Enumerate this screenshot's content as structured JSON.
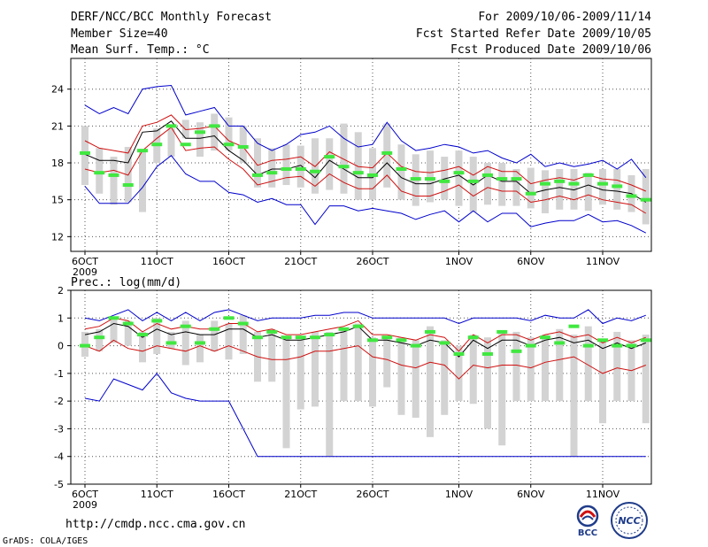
{
  "header": {
    "title": "DERF/NCC/BCC Monthly Forecast",
    "member_size": "Member Size=40",
    "variable": "Mean Surf. Temp.: °C",
    "forecast_period": "For 2009/10/06-2009/11/14",
    "started_refer": "Fcst Started Refer Date 2009/10/05",
    "produced": "Fcst Produced Date 2009/10/06"
  },
  "footer": {
    "url": "http://cmdp.ncc.cma.gov.cn",
    "credit": "GrADS: COLA/IGES",
    "logo_bcc": "BCC",
    "logo_ncc": "NCC"
  },
  "colors": {
    "box": "#d3d3d3",
    "median": "#40e840",
    "mean": "#000000",
    "spread": "#d01010",
    "extreme": "#0000cc",
    "grid": "#555555"
  },
  "chart_data": [
    {
      "type": "box",
      "title": "Mean Surf. Temp.: °C",
      "x": [
        "2009-10-06",
        "10-07",
        "10-08",
        "10-09",
        "10-10",
        "10-11",
        "10-12",
        "10-13",
        "10-14",
        "10-15",
        "10-16",
        "10-17",
        "10-18",
        "10-19",
        "10-20",
        "10-21",
        "10-22",
        "10-23",
        "10-24",
        "10-25",
        "10-26",
        "10-27",
        "10-28",
        "10-29",
        "10-30",
        "10-31",
        "11-01",
        "11-02",
        "11-03",
        "11-04",
        "11-05",
        "11-06",
        "11-07",
        "11-08",
        "11-09",
        "11-10",
        "11-11",
        "11-12",
        "11-13",
        "11-14"
      ],
      "xticks": [
        {
          "index": 0,
          "label": "6OCT",
          "sublabel": "2009"
        },
        {
          "index": 5,
          "label": "11OCT"
        },
        {
          "index": 10,
          "label": "16OCT"
        },
        {
          "index": 15,
          "label": "21OCT"
        },
        {
          "index": 20,
          "label": "26OCT"
        },
        {
          "index": 26,
          "label": "1NOV"
        },
        {
          "index": 31,
          "label": "6NOV"
        },
        {
          "index": 36,
          "label": "11NOV"
        }
      ],
      "yticks": [
        12,
        15,
        18,
        21,
        24
      ],
      "ylim": [
        10.8,
        26.5
      ],
      "series": {
        "box_low": [
          16.2,
          15.5,
          14.6,
          14.8,
          14.0,
          18.0,
          18.5,
          20.0,
          18.5,
          19.0,
          19.0,
          18.0,
          16.0,
          16.0,
          16.2,
          16.0,
          15.5,
          15.8,
          15.5,
          15.0,
          15.0,
          16.0,
          15.0,
          14.5,
          14.8,
          15.0,
          14.5,
          14.0,
          14.6,
          14.5,
          14.5,
          14.3,
          13.9,
          14.2,
          14.2,
          14.1,
          14.6,
          14.2,
          14.0,
          13.0
        ],
        "box_high": [
          21.0,
          19.2,
          18.5,
          19.3,
          19.0,
          20.8,
          20.8,
          21.5,
          21.3,
          22.0,
          21.7,
          21.0,
          20.0,
          19.2,
          19.5,
          19.4,
          20.0,
          20.0,
          21.2,
          20.5,
          19.2,
          21.2,
          19.5,
          18.7,
          19.0,
          18.5,
          19.0,
          18.5,
          18.0,
          18.0,
          17.5,
          17.6,
          17.4,
          17.5,
          17.5,
          17.2,
          17.5,
          17.5,
          17.0,
          17.5
        ],
        "median": [
          18.8,
          17.2,
          17.0,
          16.2,
          19.0,
          19.5,
          21.0,
          19.5,
          20.5,
          21.0,
          19.5,
          19.3,
          17.0,
          17.2,
          17.5,
          17.5,
          17.3,
          18.5,
          17.7,
          17.2,
          17.0,
          18.8,
          17.5,
          16.7,
          16.7,
          16.5,
          17.2,
          16.5,
          17.0,
          16.7,
          16.7,
          15.5,
          16.3,
          16.5,
          16.3,
          17.0,
          16.3,
          16.1,
          15.3,
          15.0
        ],
        "mean": [
          18.7,
          18.2,
          18.2,
          18.0,
          20.5,
          20.6,
          21.4,
          20.0,
          20.0,
          20.2,
          19.0,
          18.2,
          17.0,
          17.5,
          17.5,
          17.8,
          16.8,
          18.2,
          17.5,
          16.8,
          16.8,
          18.0,
          16.8,
          16.3,
          16.3,
          16.7,
          17.0,
          16.2,
          17.0,
          16.5,
          16.5,
          15.5,
          15.8,
          16.0,
          15.8,
          16.2,
          15.8,
          15.7,
          15.5,
          14.8
        ],
        "ens_high": [
          19.8,
          19.2,
          19.0,
          18.8,
          21.0,
          21.3,
          21.9,
          20.7,
          20.8,
          21.0,
          19.8,
          19.3,
          17.8,
          18.2,
          18.3,
          18.5,
          17.7,
          18.9,
          18.3,
          17.7,
          17.6,
          18.8,
          17.7,
          17.3,
          17.2,
          17.4,
          17.7,
          17.0,
          17.7,
          17.3,
          17.3,
          16.3,
          16.6,
          16.8,
          16.6,
          17.0,
          16.7,
          16.6,
          16.2,
          15.7
        ],
        "ens_low": [
          17.5,
          17.2,
          17.4,
          17.0,
          19.0,
          20.0,
          20.9,
          19.0,
          19.2,
          19.3,
          18.3,
          17.5,
          16.2,
          16.5,
          16.8,
          16.9,
          16.1,
          17.1,
          16.4,
          15.9,
          15.9,
          17.0,
          15.7,
          15.3,
          15.3,
          15.7,
          16.2,
          15.3,
          16.0,
          15.7,
          15.7,
          14.8,
          15.0,
          15.3,
          15.0,
          15.4,
          15.0,
          14.8,
          14.6,
          13.9
        ],
        "max": [
          22.7,
          22.0,
          22.5,
          22.0,
          24.0,
          24.2,
          24.3,
          21.9,
          22.2,
          22.5,
          21.0,
          21.0,
          19.6,
          19.0,
          19.5,
          20.3,
          20.5,
          21.0,
          20.0,
          19.3,
          19.5,
          21.3,
          19.8,
          19.0,
          19.2,
          19.5,
          19.3,
          18.8,
          19.0,
          18.4,
          18.0,
          18.7,
          17.7,
          18.0,
          17.7,
          17.9,
          18.2,
          17.5,
          18.3,
          16.8
        ],
        "min": [
          16.1,
          14.7,
          14.7,
          14.7,
          16.0,
          17.7,
          18.6,
          17.1,
          16.5,
          16.5,
          15.6,
          15.4,
          14.8,
          15.1,
          14.6,
          14.6,
          13.0,
          14.5,
          14.5,
          14.1,
          14.3,
          14.1,
          13.9,
          13.4,
          13.8,
          14.1,
          13.2,
          14.1,
          13.2,
          13.9,
          13.9,
          12.8,
          13.1,
          13.3,
          13.3,
          13.8,
          13.2,
          13.3,
          12.9,
          12.3
        ]
      }
    },
    {
      "type": "box",
      "title": "Prec.: log(mm/d)",
      "x": [
        "2009-10-06",
        "10-07",
        "10-08",
        "10-09",
        "10-10",
        "10-11",
        "10-12",
        "10-13",
        "10-14",
        "10-15",
        "10-16",
        "10-17",
        "10-18",
        "10-19",
        "10-20",
        "10-21",
        "10-22",
        "10-23",
        "10-24",
        "10-25",
        "10-26",
        "10-27",
        "10-28",
        "10-29",
        "10-30",
        "10-31",
        "11-01",
        "11-02",
        "11-03",
        "11-04",
        "11-05",
        "11-06",
        "11-07",
        "11-08",
        "11-09",
        "11-10",
        "11-11",
        "11-12",
        "11-13",
        "11-14"
      ],
      "xticks": [
        {
          "index": 0,
          "label": "6OCT",
          "sublabel": "2009"
        },
        {
          "index": 5,
          "label": "11OCT"
        },
        {
          "index": 10,
          "label": "16OCT"
        },
        {
          "index": 15,
          "label": "21OCT"
        },
        {
          "index": 20,
          "label": "26OCT"
        },
        {
          "index": 26,
          "label": "1NOV"
        },
        {
          "index": 31,
          "label": "6NOV"
        },
        {
          "index": 36,
          "label": "11NOV"
        }
      ],
      "yticks": [
        -5,
        -4,
        -3,
        -2,
        -1,
        0,
        1,
        2
      ],
      "ylim": [
        -5,
        2
      ],
      "series": {
        "box_low": [
          -0.4,
          -0.2,
          0.1,
          0.0,
          -0.6,
          -0.3,
          -0.1,
          -0.7,
          -0.6,
          -0.2,
          -0.5,
          -0.3,
          -1.3,
          -1.3,
          -3.7,
          -2.3,
          -2.2,
          -4.0,
          -2.0,
          -2.0,
          -2.2,
          -1.5,
          -2.5,
          -2.6,
          -3.3,
          -2.5,
          -2.0,
          -2.1,
          -3.0,
          -3.6,
          -2.0,
          -2.0,
          -2.0,
          -2.0,
          -4.0,
          -2.0,
          -2.8,
          -2.0,
          -2.0,
          -2.8
        ],
        "box_high": [
          0.5,
          0.6,
          1.0,
          0.9,
          0.5,
          1.0,
          0.5,
          0.9,
          0.4,
          0.9,
          0.8,
          1.1,
          0.5,
          0.6,
          0.3,
          0.2,
          0.5,
          0.5,
          0.6,
          0.8,
          0.3,
          0.3,
          0.3,
          0.2,
          0.7,
          0.2,
          0.0,
          0.4,
          0.3,
          0.5,
          0.5,
          0.3,
          0.4,
          0.6,
          0.4,
          0.7,
          0.2,
          0.5,
          0.2,
          0.4
        ],
        "median": [
          0.0,
          0.3,
          1.0,
          0.8,
          0.4,
          0.9,
          0.1,
          0.7,
          0.1,
          0.6,
          1.0,
          0.8,
          0.3,
          0.5,
          0.3,
          0.3,
          0.3,
          0.4,
          0.6,
          0.7,
          0.2,
          0.3,
          0.2,
          0.0,
          0.5,
          0.1,
          -0.3,
          0.3,
          -0.3,
          0.5,
          -0.2,
          0.0,
          0.3,
          0.1,
          0.7,
          0.0,
          0.2,
          0.0,
          0.0,
          0.2
        ],
        "mean": [
          0.4,
          0.5,
          0.8,
          0.7,
          0.3,
          0.6,
          0.4,
          0.5,
          0.4,
          0.4,
          0.6,
          0.6,
          0.3,
          0.4,
          0.2,
          0.2,
          0.3,
          0.4,
          0.5,
          0.7,
          0.2,
          0.2,
          0.1,
          0.0,
          0.2,
          0.1,
          -0.4,
          0.2,
          -0.1,
          0.2,
          0.2,
          0.0,
          0.2,
          0.3,
          0.1,
          0.2,
          -0.1,
          0.1,
          -0.1,
          0.1
        ],
        "ens_high": [
          0.6,
          0.7,
          1.0,
          0.9,
          0.5,
          0.8,
          0.6,
          0.7,
          0.6,
          0.6,
          0.8,
          0.8,
          0.5,
          0.6,
          0.4,
          0.4,
          0.5,
          0.6,
          0.7,
          0.9,
          0.4,
          0.4,
          0.3,
          0.2,
          0.4,
          0.3,
          -0.2,
          0.4,
          0.1,
          0.4,
          0.4,
          0.2,
          0.4,
          0.5,
          0.3,
          0.4,
          0.1,
          0.3,
          0.1,
          0.3
        ],
        "ens_low": [
          0.0,
          -0.2,
          0.2,
          -0.1,
          -0.2,
          0.0,
          -0.1,
          -0.2,
          0.0,
          -0.2,
          0.0,
          -0.2,
          -0.4,
          -0.5,
          -0.5,
          -0.4,
          -0.2,
          -0.2,
          -0.1,
          0.0,
          -0.4,
          -0.5,
          -0.7,
          -0.8,
          -0.6,
          -0.7,
          -1.2,
          -0.7,
          -0.8,
          -0.7,
          -0.7,
          -0.8,
          -0.6,
          -0.5,
          -0.4,
          -0.7,
          -1.0,
          -0.8,
          -0.9,
          -0.7
        ],
        "max": [
          1.0,
          0.9,
          1.1,
          1.3,
          0.9,
          1.2,
          0.9,
          1.2,
          0.9,
          1.2,
          1.3,
          1.1,
          0.9,
          1.0,
          1.0,
          1.0,
          1.1,
          1.1,
          1.2,
          1.2,
          1.0,
          1.0,
          1.0,
          1.0,
          1.0,
          1.0,
          0.8,
          1.0,
          1.0,
          1.0,
          1.0,
          0.9,
          1.1,
          1.0,
          1.0,
          1.3,
          0.8,
          1.0,
          0.9,
          1.1
        ],
        "min": [
          -1.9,
          -2.0,
          -1.2,
          -1.4,
          -1.6,
          -1.0,
          -1.7,
          -1.9,
          -2.0,
          -2.0,
          -2.0,
          -3.0,
          -4.0,
          -4.0,
          -4.0,
          -4.0,
          -4.0,
          -4.0,
          -4.0,
          -4.0,
          -4.0,
          -4.0,
          -4.0,
          -4.0,
          -4.0,
          -4.0,
          -4.0,
          -4.0,
          -4.0,
          -4.0,
          -4.0,
          -4.0,
          -4.0,
          -4.0,
          -4.0,
          -4.0,
          -4.0,
          -4.0,
          -4.0,
          -4.0
        ]
      }
    }
  ]
}
